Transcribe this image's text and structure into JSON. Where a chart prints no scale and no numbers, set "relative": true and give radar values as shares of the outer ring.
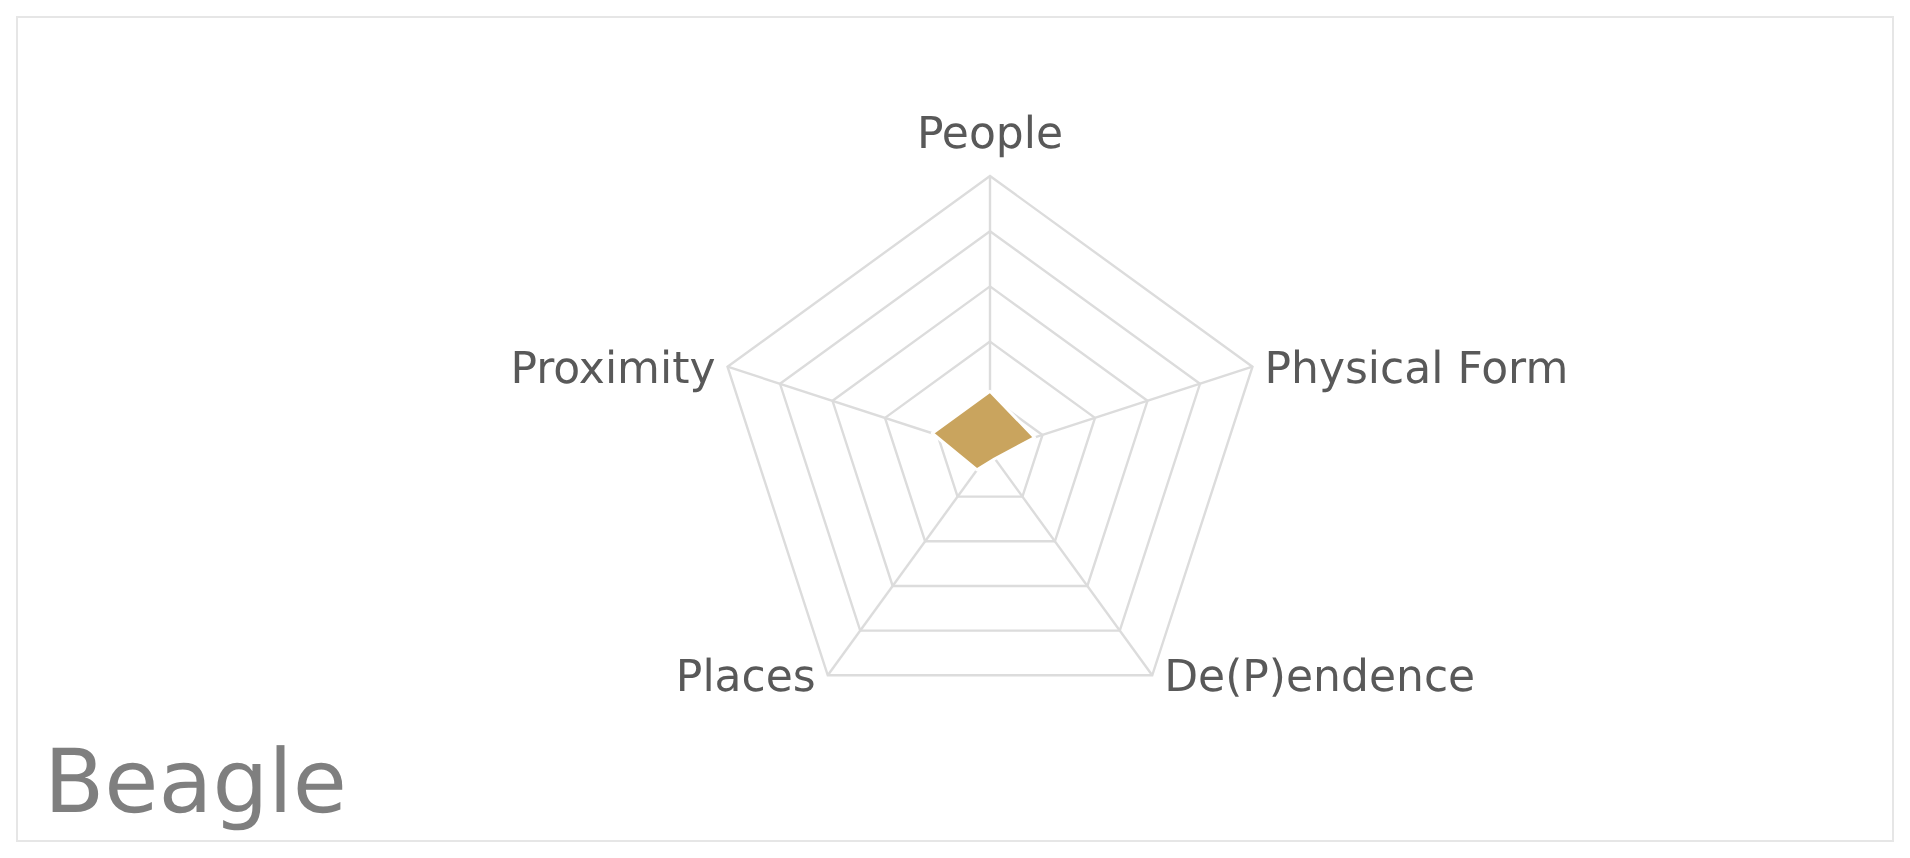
{
  "chart_data": {
    "type": "radar",
    "title": "Beagle",
    "relative": true,
    "categories": [
      "People",
      "Physical Form",
      "De(P)endence",
      "Places",
      "Proximity"
    ],
    "series": [
      {
        "color": "#c9a45e",
        "values": [
          0.22,
          0.17,
          0.03,
          0.08,
          0.22
        ]
      }
    ],
    "grid": true
  }
}
